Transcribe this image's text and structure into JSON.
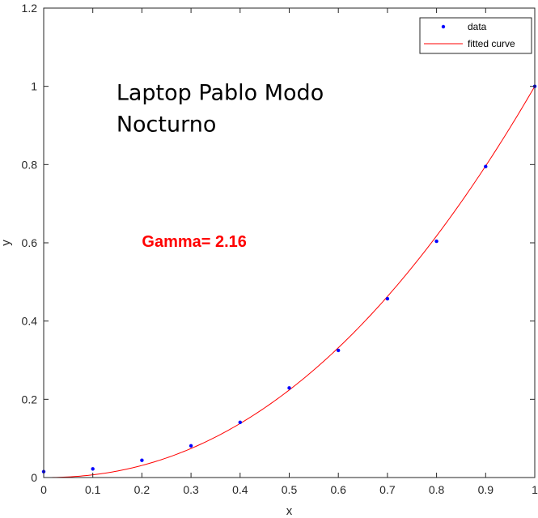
{
  "chart_data": {
    "type": "scatter",
    "title": "",
    "xlabel": "x",
    "ylabel": "y",
    "xlim": [
      0,
      1
    ],
    "ylim": [
      0,
      1.2
    ],
    "x_ticks": [
      "0",
      "0.1",
      "0.2",
      "0.3",
      "0.4",
      "0.5",
      "0.6",
      "0.7",
      "0.8",
      "0.9",
      "1"
    ],
    "y_ticks": [
      "0",
      "0.2",
      "0.4",
      "0.6",
      "0.8",
      "1",
      "1.2"
    ],
    "grid": false,
    "legend": {
      "placement": "top-right",
      "entries": [
        "data",
        "fitted curve"
      ]
    },
    "series": [
      {
        "name": "data",
        "kind": "scatter",
        "color": "#0000ff",
        "x": [
          0,
          0.1,
          0.2,
          0.3,
          0.4,
          0.5,
          0.6,
          0.7,
          0.8,
          0.9,
          1.0
        ],
        "y": [
          0.015,
          0.022,
          0.044,
          0.081,
          0.141,
          0.229,
          0.325,
          0.457,
          0.604,
          0.795,
          1.0
        ]
      },
      {
        "name": "fitted curve",
        "kind": "line",
        "color": "#ff0000",
        "model": "power",
        "gamma": 2.16
      }
    ],
    "annotations": [
      {
        "text": "Laptop Pablo Modo",
        "x": 0.148,
        "y": 0.965
      },
      {
        "text": "Nocturno",
        "x": 0.148,
        "y": 0.885
      },
      {
        "text": "Gamma= 2.16",
        "x": 0.2,
        "y": 0.59,
        "color": "#ff0000"
      }
    ]
  }
}
